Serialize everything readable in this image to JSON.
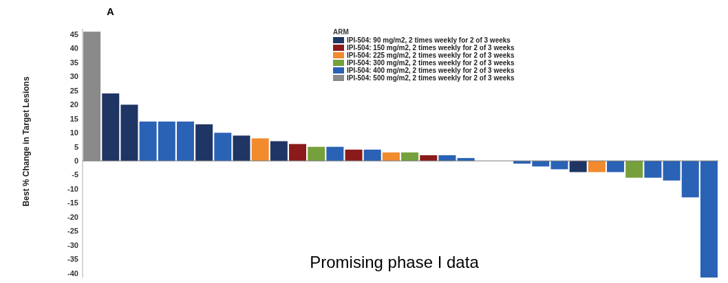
{
  "chart_data": {
    "type": "bar",
    "title": "A",
    "ylabel": "Best % Change in Target Lesions",
    "legend_title": "ARM",
    "legend": "top right",
    "stacked": true,
    "grid": false,
    "categories": [
      null,
      null,
      null,
      null,
      null,
      null,
      null,
      null,
      null,
      null,
      null,
      null,
      null,
      null,
      null,
      null,
      null,
      null,
      null,
      null,
      null,
      null,
      null,
      null,
      null,
      null,
      null,
      null,
      null,
      null,
      null,
      null,
      null,
      null
    ],
    "ylim": [
      -43,
      47
    ],
    "yticks": [
      -40,
      -35,
      -30,
      -25,
      -20,
      -15,
      -10,
      -5,
      0,
      5,
      10,
      15,
      20,
      25,
      30,
      35,
      40,
      45
    ],
    "annotations": [
      "Promising phase I data"
    ],
    "ref_lines": [
      {
        "axis": "y",
        "value": 0,
        "color": "#777777"
      }
    ],
    "series": [
      {
        "name": "IPI-504: 90 mg/m2, 2 times weekly for 2 of 3 weeks",
        "color": "#1f3564",
        "values": [
          null,
          24,
          20,
          null,
          null,
          null,
          13,
          null,
          9,
          null,
          7,
          null,
          null,
          null,
          null,
          null,
          null,
          null,
          null,
          null,
          null,
          null,
          null,
          null,
          null,
          null,
          -4,
          null,
          null,
          null,
          null,
          null,
          null,
          null
        ]
      },
      {
        "name": "IPI-504: 150 mg/m2, 2 times weekly for 2 of 3 weeks",
        "color": "#8b1a1a",
        "values": [
          null,
          null,
          null,
          null,
          null,
          null,
          null,
          null,
          null,
          null,
          null,
          6,
          null,
          null,
          4,
          null,
          null,
          null,
          2,
          null,
          null,
          null,
          null,
          null,
          null,
          null,
          null,
          null,
          null,
          null,
          null,
          null,
          null,
          null
        ]
      },
      {
        "name": "IPI-504: 225 mg/m2, 2 times weekly for 2 of 3 weeks",
        "color": "#f28a2e",
        "values": [
          null,
          null,
          null,
          null,
          null,
          null,
          null,
          null,
          null,
          8,
          null,
          null,
          null,
          null,
          null,
          null,
          3,
          null,
          null,
          null,
          null,
          null,
          null,
          null,
          null,
          null,
          null,
          -4,
          null,
          null,
          null,
          null,
          null,
          null
        ]
      },
      {
        "name": "IPI-504: 300 mg/m2, 2 times weekly for 2 of 3 weeks",
        "color": "#76a03c",
        "values": [
          null,
          null,
          null,
          null,
          null,
          null,
          null,
          null,
          null,
          null,
          null,
          null,
          5,
          null,
          null,
          null,
          null,
          3,
          null,
          null,
          null,
          null,
          null,
          null,
          null,
          null,
          null,
          null,
          null,
          -6,
          null,
          null,
          null,
          null
        ]
      },
      {
        "name": "IPI-504: 400 mg/m2, 2 times weekly for 2 of 3 weeks",
        "color": "#2a62b5",
        "values": [
          null,
          null,
          null,
          14,
          14,
          14,
          null,
          10,
          null,
          null,
          null,
          null,
          null,
          5,
          null,
          4,
          null,
          null,
          null,
          2,
          1,
          null,
          null,
          -1,
          -2,
          -3,
          null,
          null,
          -4,
          null,
          -6,
          -7,
          -13,
          -42
        ]
      },
      {
        "name": "IPI-504: 500 mg/m2, 2 times weekly for 2 of 3 weeks",
        "color": "#8a8a8a",
        "values": [
          46,
          null,
          null,
          null,
          null,
          null,
          null,
          null,
          null,
          null,
          null,
          null,
          null,
          null,
          null,
          null,
          null,
          null,
          null,
          null,
          null,
          null,
          null,
          null,
          null,
          null,
          null,
          null,
          null,
          null,
          null,
          null,
          null,
          null
        ]
      }
    ]
  }
}
